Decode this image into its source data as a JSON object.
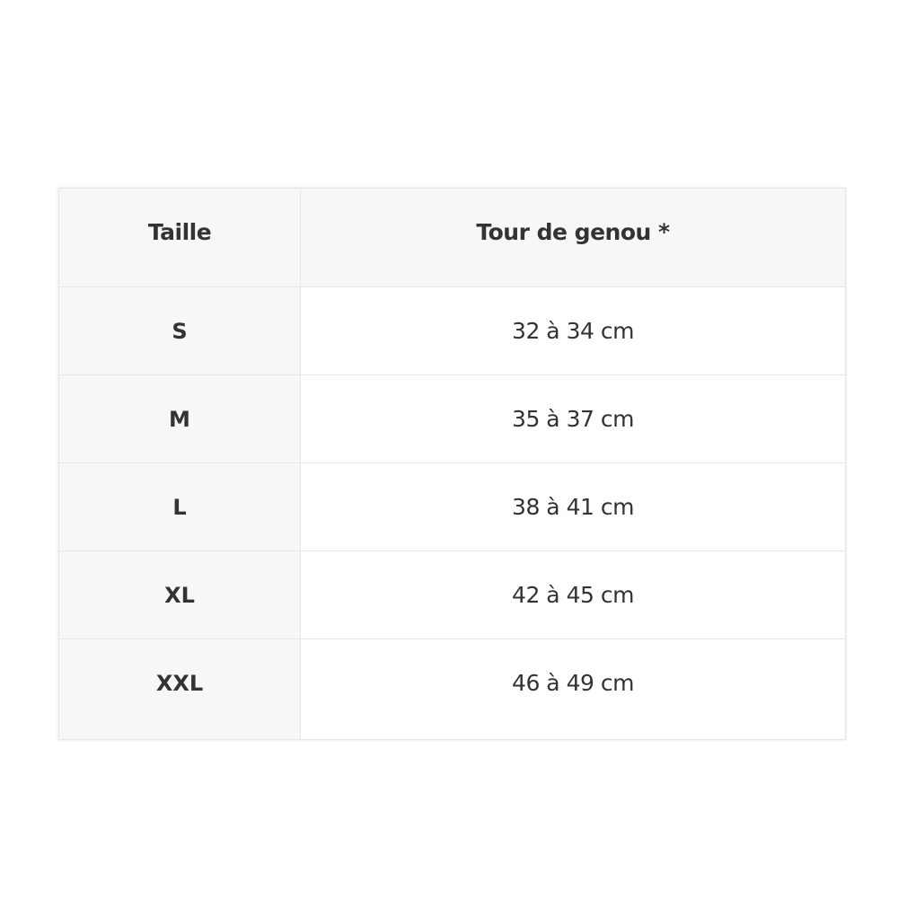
{
  "table": {
    "headers": [
      "Taille",
      "Tour de genou *"
    ],
    "rows": [
      {
        "size": "S",
        "value": "32 à 34 cm"
      },
      {
        "size": "M",
        "value": "35 à 37 cm"
      },
      {
        "size": "L",
        "value": "38 à 41 cm"
      },
      {
        "size": "XL",
        "value": "42 à 45 cm"
      },
      {
        "size": "XXL",
        "value": "46 à 49 cm"
      }
    ]
  }
}
